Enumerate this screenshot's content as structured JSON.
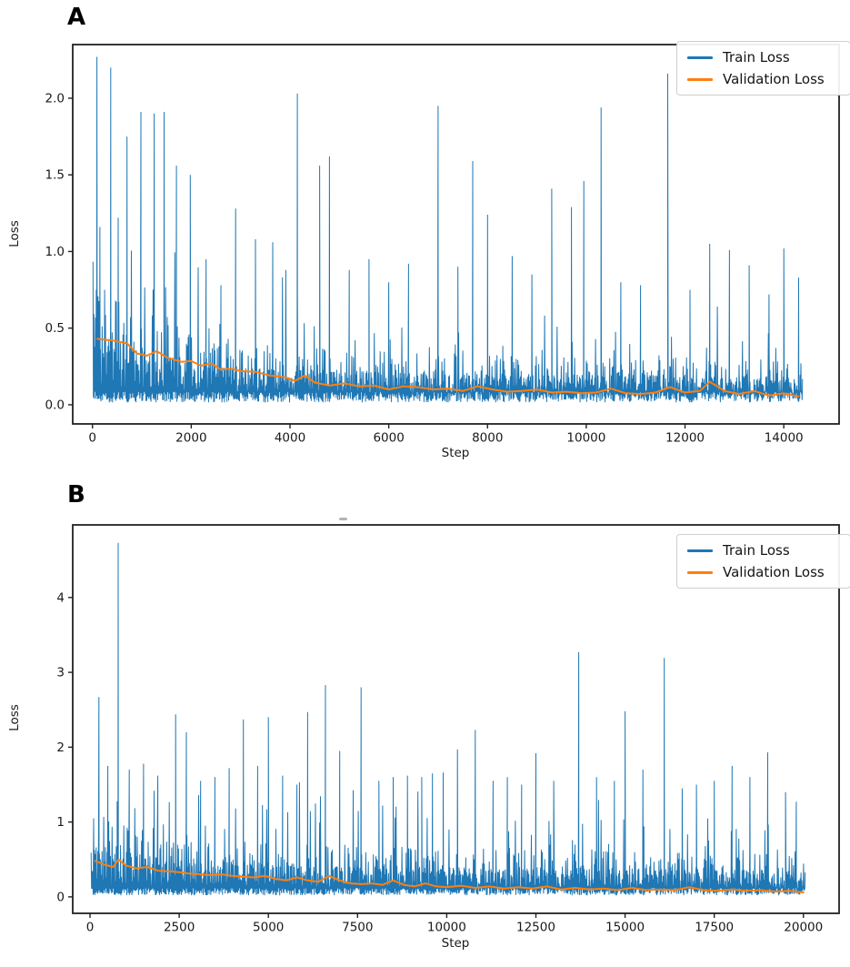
{
  "figure": {
    "background": "#ffffff",
    "x_axis_label": "Step",
    "y_axis_label": "Loss"
  },
  "colors": {
    "train": "#1f77b4",
    "validation": "#ff7f0e",
    "spine": "#212121",
    "tick_text": "#1a1a1a",
    "legend_border": "#cfcfcf"
  },
  "chart_data": [
    {
      "id": "A",
      "type": "line",
      "panel_label": "A",
      "xlabel": "Step",
      "ylabel": "Loss",
      "xlim": [
        -400,
        15120
      ],
      "ylim": [
        -0.125,
        2.35
      ],
      "xticks": {
        "values": [
          0,
          2000,
          4000,
          6000,
          8000,
          10000,
          12000,
          14000
        ],
        "labels": [
          "0",
          "2000",
          "4000",
          "6000",
          "8000",
          "10000",
          "12000",
          "14000"
        ]
      },
      "yticks": {
        "values": [
          0.0,
          0.5,
          1.0,
          1.5,
          2.0
        ],
        "labels": [
          "0.0",
          "0.5",
          "1.0",
          "1.5",
          "2.0"
        ]
      },
      "legend": {
        "position": "upper right",
        "entries": [
          {
            "label": "Train Loss",
            "color": "#1f77b4"
          },
          {
            "label": "Validation Loss",
            "color": "#ff7f0e"
          }
        ]
      },
      "series": {
        "train": {
          "name": "Train Loss",
          "color": "#1f77b4",
          "style": "noisy-line",
          "x_start": 10,
          "x_end": 14380,
          "band": {
            "low_min": 0.015,
            "low_span": 0.07,
            "floor": 0.04
          },
          "envelope": [
            [
              0,
              1.05
            ],
            [
              800,
              0.85
            ],
            [
              2000,
              0.62
            ],
            [
              3500,
              0.5
            ],
            [
              6000,
              0.44
            ],
            [
              10000,
              0.4
            ],
            [
              14400,
              0.36
            ]
          ],
          "spikes": [
            [
              90,
              2.27
            ],
            [
              150,
              1.16
            ],
            [
              370,
              2.2
            ],
            [
              520,
              1.22
            ],
            [
              700,
              1.75
            ],
            [
              980,
              1.91
            ],
            [
              1250,
              1.9
            ],
            [
              1450,
              1.91
            ],
            [
              1700,
              1.56
            ],
            [
              1980,
              1.5
            ],
            [
              2300,
              0.95
            ],
            [
              2600,
              0.78
            ],
            [
              2900,
              1.28
            ],
            [
              3300,
              1.08
            ],
            [
              3650,
              1.06
            ],
            [
              4150,
              2.03
            ],
            [
              4600,
              1.56
            ],
            [
              4800,
              1.62
            ],
            [
              5200,
              0.88
            ],
            [
              5600,
              0.95
            ],
            [
              6000,
              0.8
            ],
            [
              6400,
              0.92
            ],
            [
              7000,
              1.95
            ],
            [
              7400,
              0.9
            ],
            [
              7700,
              1.59
            ],
            [
              8000,
              1.24
            ],
            [
              8500,
              0.97
            ],
            [
              8900,
              0.85
            ],
            [
              9300,
              1.41
            ],
            [
              9700,
              1.29
            ],
            [
              9950,
              1.46
            ],
            [
              10300,
              1.94
            ],
            [
              10700,
              0.8
            ],
            [
              11100,
              0.78
            ],
            [
              11650,
              2.16
            ],
            [
              12100,
              0.75
            ],
            [
              12500,
              1.05
            ],
            [
              12900,
              1.01
            ],
            [
              13300,
              0.91
            ],
            [
              13700,
              0.72
            ],
            [
              14000,
              1.02
            ],
            [
              14300,
              0.83
            ]
          ]
        },
        "validation": {
          "name": "Validation Loss",
          "color": "#ff7f0e",
          "style": "smooth-line",
          "points": [
            [
              100,
              0.43
            ],
            [
              400,
              0.42
            ],
            [
              700,
              0.4
            ],
            [
              900,
              0.335
            ],
            [
              1100,
              0.32
            ],
            [
              1300,
              0.35
            ],
            [
              1500,
              0.31
            ],
            [
              1800,
              0.28
            ],
            [
              2000,
              0.285
            ],
            [
              2200,
              0.255
            ],
            [
              2400,
              0.27
            ],
            [
              2600,
              0.23
            ],
            [
              2800,
              0.235
            ],
            [
              3000,
              0.22
            ],
            [
              3300,
              0.215
            ],
            [
              3600,
              0.19
            ],
            [
              3900,
              0.18
            ],
            [
              4100,
              0.155
            ],
            [
              4300,
              0.19
            ],
            [
              4500,
              0.145
            ],
            [
              4800,
              0.125
            ],
            [
              5100,
              0.14
            ],
            [
              5400,
              0.12
            ],
            [
              5700,
              0.125
            ],
            [
              6000,
              0.1
            ],
            [
              6300,
              0.12
            ],
            [
              6600,
              0.115
            ],
            [
              6900,
              0.1
            ],
            [
              7200,
              0.105
            ],
            [
              7500,
              0.09
            ],
            [
              7800,
              0.12
            ],
            [
              8100,
              0.1
            ],
            [
              8400,
              0.085
            ],
            [
              8700,
              0.09
            ],
            [
              9000,
              0.1
            ],
            [
              9300,
              0.08
            ],
            [
              9600,
              0.085
            ],
            [
              9900,
              0.075
            ],
            [
              10200,
              0.08
            ],
            [
              10500,
              0.105
            ],
            [
              10800,
              0.075
            ],
            [
              11100,
              0.07
            ],
            [
              11400,
              0.08
            ],
            [
              11700,
              0.115
            ],
            [
              12000,
              0.08
            ],
            [
              12300,
              0.09
            ],
            [
              12500,
              0.15
            ],
            [
              12800,
              0.09
            ],
            [
              13100,
              0.07
            ],
            [
              13400,
              0.09
            ],
            [
              13700,
              0.06
            ],
            [
              14000,
              0.075
            ],
            [
              14300,
              0.055
            ]
          ]
        }
      }
    },
    {
      "id": "B",
      "type": "line",
      "panel_label": "B",
      "xlabel": "Step",
      "ylabel": "Loss",
      "xlim": [
        -485,
        21000
      ],
      "ylim": [
        -0.22,
        4.97
      ],
      "xticks": {
        "values": [
          0,
          2500,
          5000,
          7500,
          10000,
          12500,
          15000,
          17500,
          20000
        ],
        "labels": [
          "0",
          "2500",
          "5000",
          "7500",
          "10000",
          "12500",
          "15000",
          "17500",
          "20000"
        ]
      },
      "yticks": {
        "values": [
          0,
          1,
          2,
          3,
          4
        ],
        "labels": [
          "0",
          "1",
          "2",
          "3",
          "4"
        ]
      },
      "legend": {
        "position": "upper right",
        "entries": [
          {
            "label": "Train Loss",
            "color": "#1f77b4"
          },
          {
            "label": "Validation Loss",
            "color": "#ff7f0e"
          }
        ]
      },
      "series": {
        "train": {
          "name": "Train Loss",
          "color": "#1f77b4",
          "style": "noisy-line",
          "x_start": 30,
          "x_end": 20050,
          "band": {
            "low_min": 0.02,
            "low_span": 0.1,
            "floor": 0.05
          },
          "envelope": [
            [
              0,
              1.55
            ],
            [
              1500,
              1.3
            ],
            [
              4000,
              1.05
            ],
            [
              8000,
              0.9
            ],
            [
              14000,
              0.85
            ],
            [
              20100,
              0.75
            ]
          ],
          "spikes": [
            [
              250,
              2.67
            ],
            [
              500,
              1.75
            ],
            [
              790,
              4.73
            ],
            [
              1100,
              1.7
            ],
            [
              1500,
              1.78
            ],
            [
              1900,
              1.62
            ],
            [
              2400,
              2.44
            ],
            [
              2700,
              2.2
            ],
            [
              3100,
              1.55
            ],
            [
              3500,
              1.6
            ],
            [
              3900,
              1.72
            ],
            [
              4300,
              2.37
            ],
            [
              4700,
              1.75
            ],
            [
              5000,
              2.4
            ],
            [
              5400,
              1.62
            ],
            [
              5800,
              1.5
            ],
            [
              6100,
              2.47
            ],
            [
              6600,
              2.83
            ],
            [
              7000,
              1.95
            ],
            [
              7600,
              2.8
            ],
            [
              8100,
              1.55
            ],
            [
              8500,
              1.6
            ],
            [
              8900,
              1.62
            ],
            [
              9300,
              1.6
            ],
            [
              9600,
              1.65
            ],
            [
              9900,
              1.66
            ],
            [
              10300,
              1.97
            ],
            [
              10800,
              2.23
            ],
            [
              11300,
              1.55
            ],
            [
              11700,
              1.6
            ],
            [
              12100,
              1.5
            ],
            [
              12500,
              1.92
            ],
            [
              13000,
              1.55
            ],
            [
              13700,
              3.27
            ],
            [
              14200,
              1.6
            ],
            [
              14700,
              1.55
            ],
            [
              15000,
              2.48
            ],
            [
              15500,
              1.7
            ],
            [
              16100,
              3.19
            ],
            [
              16600,
              1.45
            ],
            [
              17000,
              1.5
            ],
            [
              17500,
              1.55
            ],
            [
              18000,
              1.75
            ],
            [
              18500,
              1.6
            ],
            [
              19000,
              1.93
            ],
            [
              19500,
              1.4
            ],
            [
              19800,
              1.27
            ]
          ]
        },
        "validation": {
          "name": "Validation Loss",
          "color": "#ff7f0e",
          "style": "smooth-line",
          "points": [
            [
              150,
              0.48
            ],
            [
              400,
              0.43
            ],
            [
              650,
              0.4
            ],
            [
              800,
              0.5
            ],
            [
              1000,
              0.42
            ],
            [
              1300,
              0.38
            ],
            [
              1600,
              0.4
            ],
            [
              1900,
              0.35
            ],
            [
              2200,
              0.34
            ],
            [
              2500,
              0.33
            ],
            [
              2800,
              0.31
            ],
            [
              3100,
              0.3
            ],
            [
              3400,
              0.29
            ],
            [
              3700,
              0.3
            ],
            [
              4000,
              0.28
            ],
            [
              4300,
              0.27
            ],
            [
              4600,
              0.26
            ],
            [
              4900,
              0.28
            ],
            [
              5200,
              0.24
            ],
            [
              5500,
              0.22
            ],
            [
              5800,
              0.26
            ],
            [
              6100,
              0.22
            ],
            [
              6400,
              0.2
            ],
            [
              6700,
              0.28
            ],
            [
              7000,
              0.22
            ],
            [
              7300,
              0.18
            ],
            [
              7600,
              0.17
            ],
            [
              7900,
              0.18
            ],
            [
              8200,
              0.16
            ],
            [
              8500,
              0.22
            ],
            [
              8800,
              0.16
            ],
            [
              9100,
              0.14
            ],
            [
              9400,
              0.18
            ],
            [
              9700,
              0.14
            ],
            [
              10000,
              0.13
            ],
            [
              10400,
              0.15
            ],
            [
              10800,
              0.12
            ],
            [
              11200,
              0.14
            ],
            [
              11600,
              0.11
            ],
            [
              12000,
              0.13
            ],
            [
              12400,
              0.11
            ],
            [
              12800,
              0.14
            ],
            [
              13200,
              0.1
            ],
            [
              13600,
              0.12
            ],
            [
              14000,
              0.1
            ],
            [
              14400,
              0.11
            ],
            [
              14800,
              0.09
            ],
            [
              15200,
              0.12
            ],
            [
              15600,
              0.09
            ],
            [
              16000,
              0.1
            ],
            [
              16400,
              0.09
            ],
            [
              16800,
              0.13
            ],
            [
              17200,
              0.09
            ],
            [
              17600,
              0.08
            ],
            [
              18000,
              0.1
            ],
            [
              18400,
              0.08
            ],
            [
              18800,
              0.09
            ],
            [
              19200,
              0.07
            ],
            [
              19600,
              0.08
            ],
            [
              20000,
              0.06
            ]
          ]
        }
      }
    }
  ]
}
